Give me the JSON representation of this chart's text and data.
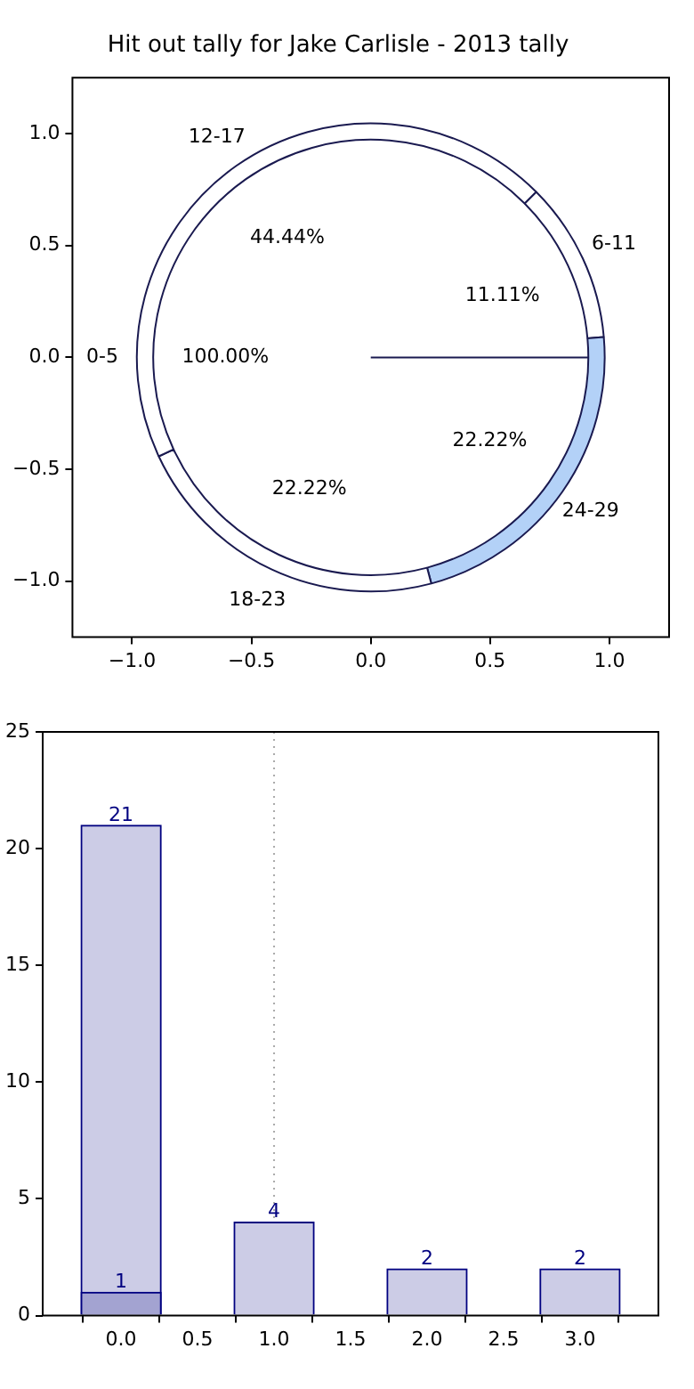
{
  "chart_data": [
    {
      "type": "scatter",
      "title": "Hit out tally for Jake Carlisle - 2013 tally",
      "xlim": [
        -1.25,
        1.25
      ],
      "ylim": [
        -1.25,
        1.25
      ],
      "xticks": [
        {
          "value": -1,
          "label": "−1.0"
        },
        {
          "value": -0.5,
          "label": "−0.5"
        },
        {
          "value": 0,
          "label": "0.0"
        },
        {
          "value": 0.5,
          "label": "0.5"
        },
        {
          "value": 1,
          "label": "1.0"
        }
      ],
      "yticks": [
        {
          "value": -1,
          "label": "−1.0"
        },
        {
          "value": -0.5,
          "label": "−0.5"
        },
        {
          "value": 0,
          "label": "0.0"
        },
        {
          "value": 0.5,
          "label": "0.5"
        },
        {
          "value": 1,
          "label": "1.0"
        }
      ]
    },
    {
      "type": "pie",
      "categories": [
        "0-5"
      ],
      "values": [
        100
      ],
      "colors": [
        "#ffffff"
      ],
      "value_labels": [
        "100.00%"
      ]
    },
    {
      "type": "donut",
      "categories": [
        "6-11",
        "24-29",
        "18-23",
        "12-17"
      ],
      "values": [
        11.11,
        22.22,
        22.22,
        44.44
      ],
      "colors": [
        "#ffffff",
        "#b3d1f7",
        "#ffffff",
        "#ffffff"
      ],
      "value_labels": [
        "11.11%",
        "22.22%",
        "22.22%",
        "44.44%"
      ]
    },
    {
      "type": "bar",
      "x": [
        0,
        1,
        2,
        3
      ],
      "series": [
        {
          "color": "#ccccE6",
          "values": [
            21,
            4,
            2,
            2
          ],
          "value_labels": [
            "21",
            "4",
            "2",
            "2"
          ]
        },
        {
          "color": "#a3a3d1",
          "values": [
            1,
            0,
            0,
            0
          ],
          "value_labels": [
            "1",
            null,
            null,
            null
          ]
        }
      ],
      "xlim": [
        -0.225,
        3.225
      ],
      "xticks": [
        {
          "value": 0,
          "label": "0.0"
        },
        {
          "value": 0.5,
          "label": "0.5"
        },
        {
          "value": 1,
          "label": "1.0"
        },
        {
          "value": 1.5,
          "label": "1.5"
        },
        {
          "value": 2,
          "label": "2.0"
        },
        {
          "value": 2.5,
          "label": "2.5"
        },
        {
          "value": 3,
          "label": "3.0"
        }
      ],
      "ylim": [
        0,
        25
      ],
      "yticks": [
        0,
        5,
        10,
        15,
        20,
        25
      ],
      "ref_lines": [
        {
          "axis": "x",
          "value": 1,
          "color": "#aaaaaa",
          "line_style": "dotted"
        }
      ]
    }
  ]
}
